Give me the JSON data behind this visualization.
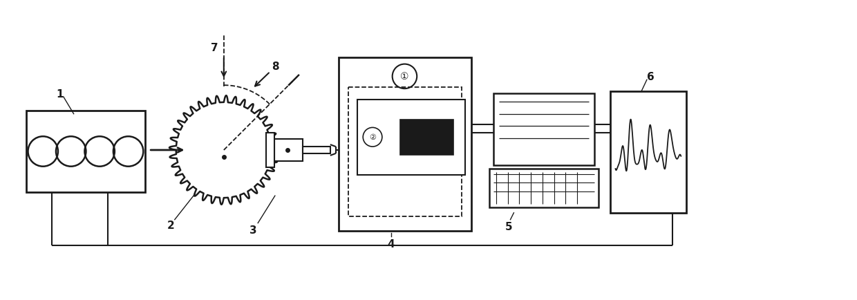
{
  "bg_color": "#ffffff",
  "line_color": "#1a1a1a",
  "fig_width": 12.4,
  "fig_height": 4.35,
  "dpi": 100
}
